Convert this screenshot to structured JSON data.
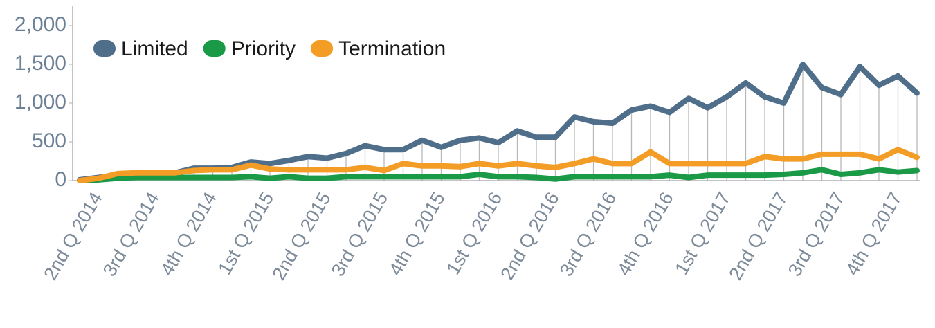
{
  "chart_data": {
    "type": "line",
    "categories": [
      null,
      "2nd Q 2014",
      null,
      null,
      "3rd Q 2014",
      null,
      null,
      "4th Q 2014",
      null,
      null,
      "1st Q 2015",
      null,
      null,
      "2nd Q 2015",
      null,
      null,
      "3rd Q 2015",
      null,
      null,
      "4th Q 2015",
      null,
      null,
      "1st Q 2016",
      null,
      null,
      "2nd Q 2016",
      null,
      null,
      "3rd Q 2016",
      null,
      null,
      "4th Q 2016",
      null,
      null,
      "1st Q 2017",
      null,
      null,
      "2nd Q 2017",
      null,
      null,
      "3rd Q 2017",
      null,
      null,
      "4th Q 2017",
      null
    ],
    "series": [
      {
        "name": "Limited",
        "color": "#4f6e8a",
        "values": [
          10,
          40,
          70,
          90,
          100,
          100,
          160,
          160,
          170,
          240,
          220,
          260,
          310,
          290,
          350,
          450,
          400,
          400,
          520,
          430,
          520,
          550,
          490,
          640,
          560,
          560,
          820,
          760,
          740,
          910,
          960,
          880,
          1060,
          940,
          1080,
          1260,
          1080,
          1000,
          1500,
          1200,
          1110,
          1470,
          1230,
          1350,
          1130
        ]
      },
      {
        "name": "Priority",
        "color": "#1a9a46",
        "values": [
          0,
          10,
          30,
          40,
          40,
          40,
          40,
          40,
          40,
          50,
          30,
          50,
          30,
          30,
          50,
          50,
          50,
          50,
          50,
          50,
          50,
          80,
          50,
          50,
          40,
          20,
          50,
          50,
          50,
          50,
          50,
          70,
          40,
          70,
          70,
          70,
          70,
          80,
          100,
          140,
          80,
          100,
          140,
          110,
          130
        ]
      },
      {
        "name": "Termination",
        "color": "#f39c26",
        "values": [
          0,
          30,
          90,
          100,
          100,
          100,
          130,
          140,
          140,
          200,
          150,
          140,
          140,
          140,
          140,
          170,
          130,
          220,
          190,
          190,
          180,
          220,
          190,
          220,
          190,
          170,
          220,
          280,
          220,
          220,
          370,
          220,
          220,
          220,
          220,
          220,
          310,
          280,
          280,
          340,
          340,
          340,
          280,
          400,
          300
        ]
      }
    ],
    "ylim": [
      0,
      2000
    ],
    "yticks": [
      0,
      500,
      {
        "value": 1000,
        "label": "1,000"
      },
      {
        "value": 1500,
        "label": "1,500"
      },
      {
        "value": 2000,
        "label": "2,000"
      }
    ],
    "legend": "top-left",
    "drop_lines": true
  }
}
